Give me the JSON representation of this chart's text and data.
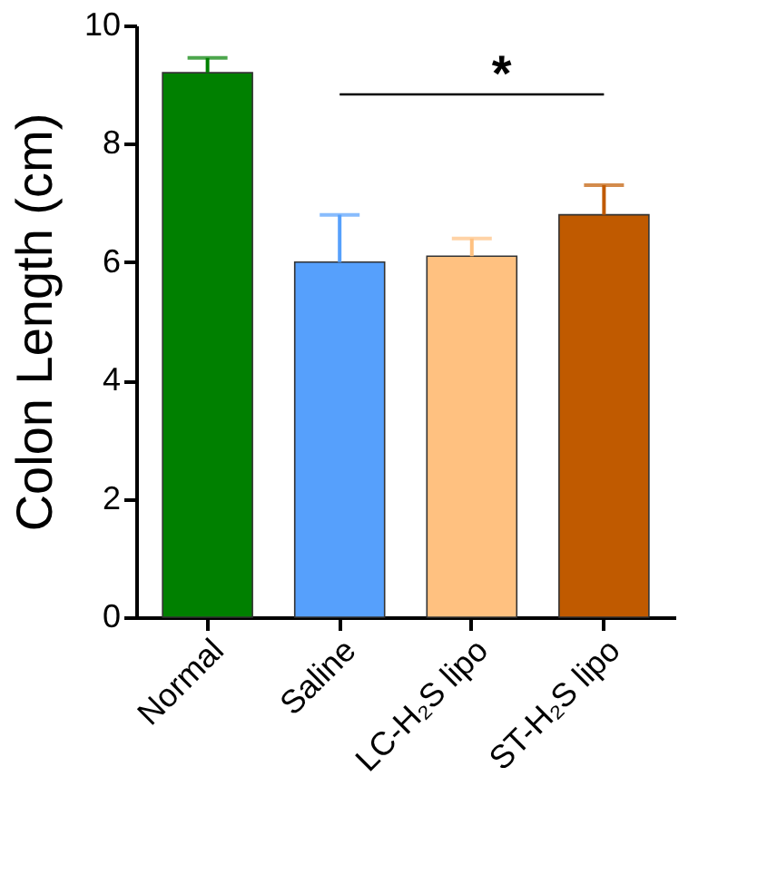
{
  "chart_data": {
    "type": "bar",
    "ylabel": "Colon Length (cm)",
    "categories": [
      "Normal",
      "Saline",
      "LC-H₂S lipo",
      "ST-H₂S lipo"
    ],
    "values": [
      9.2,
      6.0,
      6.1,
      6.8
    ],
    "colors": [
      "#008000",
      "#56a0fc",
      "#ffc180",
      "#c05a00"
    ],
    "errors": [
      [
        9.2,
        9.45
      ],
      [
        6.0,
        6.8
      ],
      [
        6.1,
        6.4
      ],
      [
        6.8,
        7.3
      ]
    ],
    "ylim": [
      0,
      10
    ],
    "yticks": [
      0,
      2,
      4,
      6,
      8,
      10
    ],
    "grid": false,
    "legend": false,
    "annotations": [
      "*"
    ]
  }
}
